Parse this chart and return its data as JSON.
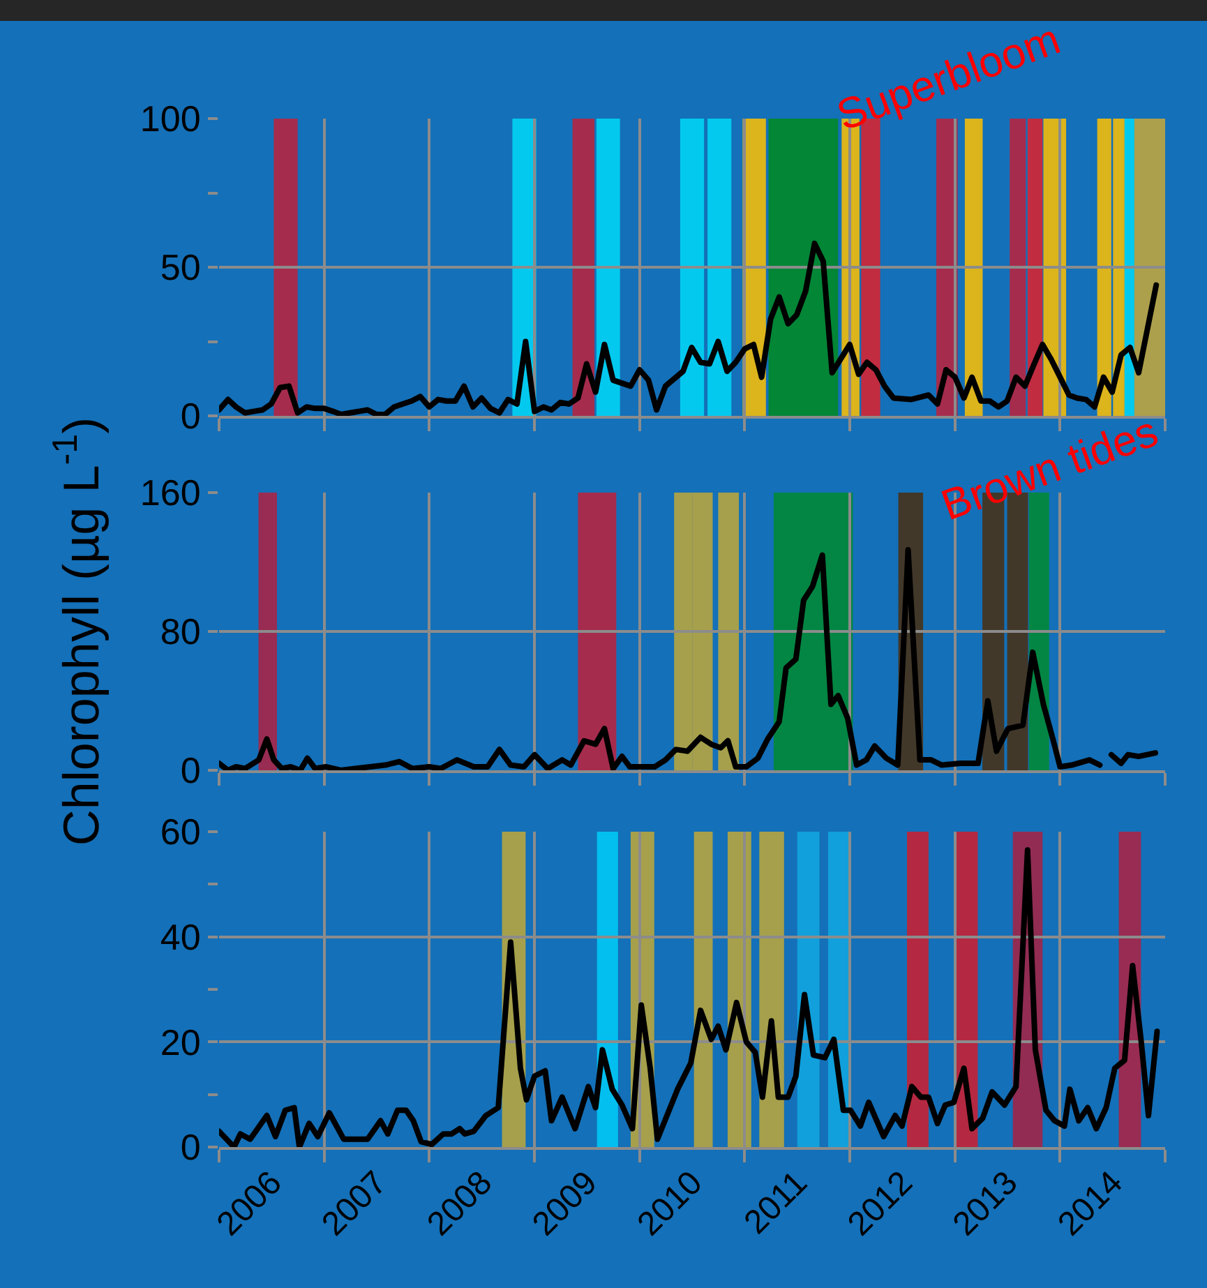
{
  "chart_data": [
    {
      "type": "line",
      "grid": true,
      "tick_labels": "y",
      "xlim": [
        "2006-01-01",
        "2015-01-01"
      ],
      "xticks": [
        {
          "value": "2006-01-01",
          "label": null
        },
        {
          "value": "2007-01-01",
          "label": null
        },
        {
          "value": "2008-01-01",
          "label": null
        },
        {
          "value": "2009-01-01",
          "label": null
        },
        {
          "value": "2010-01-01",
          "label": null
        },
        {
          "value": "2011-01-01",
          "label": null
        },
        {
          "value": "2012-01-01",
          "label": null
        },
        {
          "value": "2013-01-01",
          "label": null
        },
        {
          "value": "2014-01-01",
          "label": null
        },
        {
          "value": "2015-01-01",
          "label": null
        }
      ],
      "ylim": [
        0,
        100
      ],
      "yticks": [
        0,
        50,
        100,
        {
          "value": 25,
          "label": null
        },
        {
          "value": 75,
          "label": null
        }
      ],
      "annotations": [
        "Superbloom"
      ],
      "x": [
        "2006-01",
        "2006-02",
        "2006-03",
        "2006-04",
        "2006-05",
        "2006-06",
        "2006-07",
        "2006-08",
        "2006-09",
        "2006-10",
        "2006-11",
        "2006-12",
        "2007-01",
        "2007-02",
        "2007-03",
        "2007-04",
        "2007-05",
        "2007-06",
        "2007-07",
        "2007-08",
        "2007-09",
        "2007-10",
        "2007-11",
        "2007-12",
        "2008-01",
        "2008-02",
        "2008-03",
        "2008-04",
        "2008-05",
        "2008-06",
        "2008-07",
        "2008-08",
        "2008-09",
        "2008-10",
        "2008-11",
        "2008-12",
        "2009-01",
        "2009-02",
        "2009-03",
        "2009-04",
        "2009-05",
        "2009-06",
        "2009-07",
        "2009-08",
        "2009-09",
        "2009-10",
        "2009-12",
        "2010-01",
        "2010-02",
        "2010-03",
        "2010-04",
        "2010-06",
        "2010-07",
        "2010-08",
        "2010-09",
        "2010-10",
        "2010-11",
        "2010-12",
        "2011-01",
        "2011-02",
        "2011-03",
        "2011-04",
        "2011-05",
        "2011-06",
        "2011-07",
        "2011-08",
        "2011-09",
        "2011-10",
        "2011-11",
        "2012-01",
        "2012-02",
        "2012-03",
        "2012-04",
        "2012-05",
        "2012-06",
        "2012-08",
        "2012-10",
        "2012-11",
        "2012-12",
        "2013-01",
        "2013-02",
        "2013-03",
        "2013-04",
        "2013-05",
        "2013-06",
        "2013-07",
        "2013-08",
        "2013-09",
        "2013-10",
        "2013-11",
        "2013-12",
        "2014-01",
        "2014-02",
        "2014-03",
        "2014-04",
        "2014-05",
        "2014-06",
        "2014-07",
        "2014-08",
        "2014-09",
        "2014-10",
        "2014-12"
      ],
      "series": [
        {
          "color": "#000000",
          "values": [
            2,
            5.5,
            3,
            1,
            1.5,
            2,
            4,
            9.5,
            10,
            1,
            3,
            2.5,
            2.5,
            1.5,
            0.5,
            1,
            1.5,
            2,
            0.5,
            0.5,
            3,
            4,
            5,
            6.5,
            3,
            5.5,
            5,
            5,
            10,
            3,
            6,
            2.5,
            1,
            5.5,
            4,
            25,
            1.5,
            3,
            2,
            4.5,
            4,
            6,
            17.5,
            8,
            24,
            12,
            10,
            15.5,
            12,
            2,
            10,
            15,
            23,
            18,
            17.5,
            25,
            15,
            18,
            22.5,
            24,
            13,
            32.5,
            40,
            31,
            34,
            42,
            58,
            52,
            14.5,
            24,
            14,
            18,
            15.5,
            10,
            6,
            5.5,
            7,
            4,
            15.5,
            13,
            6,
            13,
            5,
            5,
            3,
            5,
            13,
            10,
            17,
            24,
            19,
            13,
            7,
            6,
            5.5,
            3,
            13,
            8,
            20.5,
            23,
            14.5,
            44
          ]
        }
      ],
      "bands": [
        {
          "axis": "x",
          "from": "2006-07-10",
          "to": "2006-10-01",
          "color": "#c0203a"
        },
        {
          "axis": "x",
          "from": "2008-10-16",
          "to": "2009-01-07",
          "color": "#00d8f8"
        },
        {
          "axis": "x",
          "from": "2009-05-13",
          "to": "2009-07-28",
          "color": "#c0203a"
        },
        {
          "axis": "x",
          "from": "2009-08-04",
          "to": "2009-10-25",
          "color": "#00d8f8"
        },
        {
          "axis": "x",
          "from": "2010-05-22",
          "to": "2010-08-13",
          "color": "#00d8f8"
        },
        {
          "axis": "x",
          "from": "2010-08-25",
          "to": "2010-11-16",
          "color": "#00d8f8"
        },
        {
          "axis": "x",
          "from": "2010-12-25",
          "to": "2011-03-16",
          "color": "#ffc000"
        },
        {
          "axis": "x",
          "from": "2011-03-25",
          "to": "2011-11-22",
          "color": "#008a1e"
        },
        {
          "axis": "x",
          "from": "2011-12-04",
          "to": "2012-02-04",
          "color": "#ffc000"
        },
        {
          "axis": "x",
          "from": "2012-02-10",
          "to": "2012-04-16",
          "color": "#e0202a"
        },
        {
          "axis": "x",
          "from": "2012-10-28",
          "to": "2013-01-10",
          "color": "#c0203a"
        },
        {
          "axis": "x",
          "from": "2013-02-04",
          "to": "2013-04-07",
          "color": "#ffc000"
        },
        {
          "axis": "x",
          "from": "2013-07-10",
          "to": "2013-09-04",
          "color": "#c0203a"
        },
        {
          "axis": "x",
          "from": "2013-09-10",
          "to": "2013-11-01",
          "color": "#e0202a"
        },
        {
          "axis": "x",
          "from": "2013-11-04",
          "to": "2014-01-22",
          "color": "#ffc000"
        },
        {
          "axis": "x",
          "from": "2014-05-10",
          "to": "2014-06-28",
          "color": "#ffc000"
        },
        {
          "axis": "x",
          "from": "2014-07-04",
          "to": "2014-08-13",
          "color": "#ffc000"
        },
        {
          "axis": "x",
          "from": "2014-08-13",
          "to": "2014-09-16",
          "color": "#00d8f8"
        },
        {
          "axis": "x",
          "from": "2014-09-16",
          "to": "2015-01-01",
          "color": "#c8a838"
        }
      ]
    },
    {
      "type": "line",
      "grid": true,
      "tick_labels": "y",
      "xlim": [
        "2006-01-01",
        "2015-01-01"
      ],
      "xticks": [
        {
          "value": "2006-01-01",
          "label": null
        },
        {
          "value": "2007-01-01",
          "label": null
        },
        {
          "value": "2008-01-01",
          "label": null
        },
        {
          "value": "2009-01-01",
          "label": null
        },
        {
          "value": "2010-01-01",
          "label": null
        },
        {
          "value": "2011-01-01",
          "label": null
        },
        {
          "value": "2012-01-01",
          "label": null
        },
        {
          "value": "2013-01-01",
          "label": null
        },
        {
          "value": "2014-01-01",
          "label": null
        },
        {
          "value": "2015-01-01",
          "label": null
        }
      ],
      "ylim": [
        0,
        160
      ],
      "yticks": [
        0,
        80,
        160
      ],
      "ylabel": "Chlorophyll (µg L$^{-1}$)",
      "annotations": [
        "Brown tides"
      ],
      "x": [
        "2006-01-01",
        "2006-02-01",
        "2006-03-01",
        "2006-04-01",
        "2006-05-19",
        "2006-06-16",
        "2006-07-10",
        "2006-08-07",
        "2006-09-07",
        "2006-10-10",
        "2006-11-04",
        "2006-12-01",
        "2007-01-07",
        "2007-02-28",
        "2007-04-19",
        "2007-06-10",
        "2007-08-01",
        "2007-09-19",
        "2007-11-04",
        "2008-01-01",
        "2008-02-10",
        "2008-04-07",
        "2008-06-04",
        "2008-07-22",
        "2008-09-01",
        "2008-10-10",
        "2008-11-25",
        "2009-01-01",
        "2009-02-16",
        "2009-04-07",
        "2009-05-07",
        "2009-06-22",
        "2009-08-01",
        "2009-09-01",
        "2009-10-01",
        "2009-11-01",
        "2009-11-28",
        "2010-01-13",
        "2010-02-22",
        "2010-04-01",
        "2010-05-07",
        "2010-06-16",
        "2010-08-01",
        "2010-09-07",
        "2010-10-10",
        "2010-11-04",
        "2010-12-01",
        "2011-01-07",
        "2011-02-16",
        "2011-03-22",
        "2011-05-01",
        "2011-05-25",
        "2011-06-28",
        "2011-07-25",
        "2011-08-25",
        "2011-09-28",
        "2011-10-28",
        "2011-11-22",
        "2011-12-25",
        "2012-01-25",
        "2012-02-28",
        "2012-03-28",
        "2012-05-07",
        "2012-06-16",
        "2012-07-22",
        "2012-09-01",
        "2012-10-10",
        "2012-11-16",
        "2013-01-19",
        "2013-03-22",
        "2013-04-25",
        "2013-05-25",
        "2013-07-04",
        "2013-08-25",
        "2013-09-28",
        "2013-11-04",
        "2013-12-07",
        "2014-01-01",
        "2014-02-10",
        "2014-04-13",
        "2014-05-19",
        "2014-06-01",
        "2014-06-28",
        "2014-08-01",
        "2014-08-25",
        "2014-10-01",
        "2014-11-28"
      ],
      "series": [
        {
          "color": "#000000",
          "values": [
            4,
            0,
            2,
            1,
            6,
            18,
            6,
            1,
            2,
            0,
            7,
            1,
            2,
            0,
            1,
            2,
            3,
            5,
            1,
            2,
            1,
            6,
            2,
            2,
            12,
            3,
            2,
            9,
            1,
            6,
            3,
            17,
            15,
            24,
            1,
            8,
            2,
            2,
            2,
            6,
            12,
            11,
            19,
            15,
            13,
            17,
            2,
            2,
            7,
            18,
            28,
            59,
            64,
            98,
            106,
            124,
            38,
            43,
            30,
            3,
            6,
            14,
            7,
            3,
            127,
            6,
            6,
            3,
            4,
            4,
            40,
            11,
            24,
            26,
            68,
            38,
            18,
            2,
            3,
            6,
            3,
            null,
            9,
            4,
            9,
            8,
            10
          ]
        }
      ],
      "bands": [
        {
          "axis": "x",
          "from": "2006-05-18",
          "to": "2006-07-21",
          "color": "#b02040"
        },
        {
          "axis": "x",
          "from": "2009-06-01",
          "to": "2009-10-12",
          "color": "#c0203a"
        },
        {
          "axis": "x",
          "from": "2010-05-01",
          "to": "2010-07-03",
          "color": "#c0a838"
        },
        {
          "axis": "x",
          "from": "2010-07-03",
          "to": "2010-09-12",
          "color": "#c0a838"
        },
        {
          "axis": "x",
          "from": "2010-10-01",
          "to": "2010-12-12",
          "color": "#c0a838"
        },
        {
          "axis": "x",
          "from": "2011-04-12",
          "to": "2012-01-12",
          "color": "#008a2e"
        },
        {
          "axis": "x",
          "from": "2012-06-18",
          "to": "2012-09-12",
          "color": "#4a2e10"
        },
        {
          "axis": "x",
          "from": "2013-04-06",
          "to": "2013-06-21",
          "color": "#4a2e10"
        },
        {
          "axis": "x",
          "from": "2013-07-01",
          "to": "2013-09-12",
          "color": "#4a2e10"
        },
        {
          "axis": "x",
          "from": "2013-09-15",
          "to": "2013-11-24",
          "color": "#008a2e"
        }
      ]
    },
    {
      "type": "line",
      "grid": true,
      "xlim": [
        "2006-01-01",
        "2015-01-01"
      ],
      "xticks": [
        {
          "value": "2006-01-01",
          "label": null
        },
        {
          "value": "2006-07-02",
          "label": "2006"
        },
        {
          "value": "2007-01-01",
          "label": null
        },
        {
          "value": "2007-07-02",
          "label": "2007"
        },
        {
          "value": "2008-01-01",
          "label": null
        },
        {
          "value": "2008-07-02",
          "label": "2008"
        },
        {
          "value": "2009-01-01",
          "label": null
        },
        {
          "value": "2009-07-02",
          "label": "2009"
        },
        {
          "value": "2010-01-01",
          "label": null
        },
        {
          "value": "2010-07-02",
          "label": "2010"
        },
        {
          "value": "2011-01-01",
          "label": null
        },
        {
          "value": "2011-07-02",
          "label": "2011"
        },
        {
          "value": "2012-01-01",
          "label": null
        },
        {
          "value": "2012-07-02",
          "label": "2012"
        },
        {
          "value": "2013-01-01",
          "label": null
        },
        {
          "value": "2013-07-02",
          "label": "2013"
        },
        {
          "value": "2014-01-01",
          "label": null
        },
        {
          "value": "2014-07-02",
          "label": "2014"
        },
        {
          "value": "2015-01-01",
          "label": null
        }
      ],
      "ylim": [
        0,
        60
      ],
      "yticks": [
        0,
        20,
        40,
        60,
        {
          "value": 10,
          "label": null
        },
        {
          "value": 30,
          "label": null
        },
        {
          "value": 50,
          "label": null
        }
      ],
      "x": [
        "2006-01-01",
        "2006-02-22",
        "2006-03-16",
        "2006-04-19",
        "2006-06-16",
        "2006-07-16",
        "2006-08-19",
        "2006-09-19",
        "2006-10-07",
        "2006-11-10",
        "2006-12-10",
        "2007-01-19",
        "2007-03-10",
        "2007-04-28",
        "2007-06-01",
        "2007-07-16",
        "2007-08-10",
        "2007-09-13",
        "2007-10-13",
        "2007-11-07",
        "2007-12-04",
        "2008-01-10",
        "2008-02-19",
        "2008-03-19",
        "2008-04-16",
        "2008-05-04",
        "2008-06-04",
        "2008-07-16",
        "2008-08-28",
        "2008-10-10",
        "2008-11-13",
        "2008-12-04",
        "2009-01-01",
        "2009-02-07",
        "2009-03-01",
        "2009-04-07",
        "2009-05-22",
        "2009-07-07",
        "2009-08-01",
        "2009-08-25",
        "2009-09-28",
        "2009-11-01",
        "2009-12-07",
        "2010-01-07",
        "2010-02-07",
        "2010-03-04",
        "2010-05-13",
        "2010-06-28",
        "2010-08-01",
        "2010-09-07",
        "2010-10-01",
        "2010-10-28",
        "2010-12-04",
        "2011-01-07",
        "2011-02-07",
        "2011-03-04",
        "2011-04-04",
        "2011-04-28",
        "2011-06-01",
        "2011-06-28",
        "2011-07-28",
        "2011-08-28",
        "2011-10-07",
        "2011-11-07",
        "2011-12-10",
        "2012-01-04",
        "2012-02-07",
        "2012-03-07",
        "2012-04-28",
        "2012-06-07",
        "2012-07-01",
        "2012-08-04",
        "2012-09-04",
        "2012-10-01",
        "2012-11-01",
        "2012-11-28",
        "2012-12-28",
        "2013-02-01",
        "2013-03-01",
        "2013-04-07",
        "2013-05-10",
        "2013-06-22",
        "2013-08-01",
        "2013-09-10",
        "2013-10-07",
        "2013-11-13",
        "2013-12-13",
        "2014-01-16",
        "2014-02-04",
        "2014-03-07",
        "2014-04-07",
        "2014-05-07",
        "2014-06-10",
        "2014-07-10",
        "2014-08-13",
        "2014-09-10",
        "2014-10-10",
        "2014-11-04",
        "2014-12-04"
      ],
      "series": [
        {
          "color": "#000000",
          "values": [
            3,
            0,
            2.5,
            1.5,
            6,
            2,
            7,
            7.5,
            0,
            4.5,
            2,
            6.5,
            1.5,
            1.5,
            1.5,
            5,
            2.5,
            7,
            7,
            5,
            1,
            0.5,
            2.5,
            2.5,
            3.5,
            2.5,
            3,
            6,
            7.5,
            39,
            15,
            9,
            13.5,
            14.5,
            5,
            9.5,
            3.5,
            11.5,
            7.5,
            18.5,
            11,
            8,
            3.5,
            27,
            15,
            1.5,
            11,
            16,
            26,
            20.5,
            23,
            18.5,
            27.5,
            20,
            18,
            9.5,
            24,
            9.5,
            9.5,
            13.5,
            29,
            17.5,
            17,
            20.5,
            7,
            7,
            4,
            8.5,
            2,
            6,
            4,
            11.5,
            9.5,
            9.5,
            4.5,
            8,
            8.5,
            15,
            3.5,
            5.5,
            10.5,
            8,
            11.5,
            56.5,
            18.5,
            7,
            5,
            4,
            11,
            5,
            7.5,
            3.5,
            7.5,
            15,
            16.5,
            34.5,
            20,
            6,
            22
          ]
        }
      ],
      "bands": [
        {
          "axis": "x",
          "from": "2008-09-10",
          "to": "2008-12-01",
          "color": "#c0a838"
        },
        {
          "axis": "x",
          "from": "2009-08-06",
          "to": "2009-10-18",
          "color": "#00ccf8"
        },
        {
          "axis": "x",
          "from": "2009-12-01",
          "to": "2010-02-21",
          "color": "#c0a838"
        },
        {
          "axis": "x",
          "from": "2010-07-09",
          "to": "2010-09-12",
          "color": "#c0a838"
        },
        {
          "axis": "x",
          "from": "2010-11-03",
          "to": "2011-01-24",
          "color": "#c0a838"
        },
        {
          "axis": "x",
          "from": "2011-02-21",
          "to": "2011-05-18",
          "color": "#c0a838"
        },
        {
          "axis": "x",
          "from": "2011-07-03",
          "to": "2011-09-18",
          "color": "#10a8e0"
        },
        {
          "axis": "x",
          "from": "2011-10-18",
          "to": "2012-01-01",
          "color": "#10a8e0"
        },
        {
          "axis": "x",
          "from": "2012-07-18",
          "to": "2012-10-01",
          "color": "#d01c2c"
        },
        {
          "axis": "x",
          "from": "2013-01-01",
          "to": "2013-03-21",
          "color": "#d01c2c"
        },
        {
          "axis": "x",
          "from": "2013-07-21",
          "to": "2013-11-01",
          "color": "#a82040"
        },
        {
          "axis": "x",
          "from": "2014-07-24",
          "to": "2014-10-09",
          "color": "#b02040"
        }
      ]
    }
  ]
}
